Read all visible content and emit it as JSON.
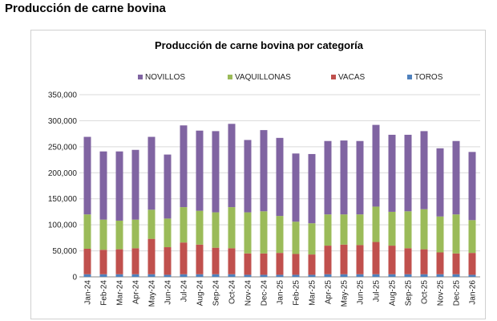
{
  "page": {
    "title": "Producción de carne bovina"
  },
  "colors": {
    "novillos": "#8064A2",
    "vaquillonas": "#9BBB59",
    "vacas": "#C0504D",
    "toros": "#4F81BD",
    "grid": "#d9d9d9",
    "axis": "#888888"
  },
  "chart_data": {
    "type": "bar",
    "stacked": true,
    "title": "Producción de carne bovina por categoría",
    "xlabel": "",
    "ylabel": "",
    "ylim": [
      0,
      350000
    ],
    "yticks": [
      0,
      50000,
      100000,
      150000,
      200000,
      250000,
      300000,
      350000
    ],
    "ytick_labels": [
      "0",
      "50,000",
      "100,000",
      "150,000",
      "200,000",
      "250,000",
      "300,000",
      "350,000"
    ],
    "legend_position": "top",
    "categories": [
      "Jan-24",
      "Feb-24",
      "Mar-24",
      "Apr-24",
      "May-24",
      "Jun-24",
      "Jul-24",
      "Aug-24",
      "Sep-24",
      "Oct-24",
      "Nov-24",
      "Dec-24",
      "Jan-25",
      "Feb-25",
      "Mar-25",
      "Apr-25",
      "May-25",
      "Jun-25",
      "Jul-25",
      "Aug-25",
      "Sep-25",
      "Oct-25",
      "Nov-25",
      "Dec-25",
      "Jan-26"
    ],
    "series": [
      {
        "name": "TOROS",
        "key": "toros",
        "values": [
          5000,
          5000,
          5000,
          5000,
          5000,
          4000,
          5000,
          5000,
          5000,
          5000,
          4000,
          4000,
          4000,
          4000,
          4000,
          5000,
          5000,
          5000,
          5000,
          5000,
          5000,
          5000,
          5000,
          5000,
          4000
        ]
      },
      {
        "name": "VACAS",
        "key": "vacas",
        "values": [
          49000,
          47000,
          48000,
          50000,
          68000,
          53000,
          61000,
          57000,
          51000,
          50000,
          41000,
          41000,
          42000,
          40000,
          39000,
          55000,
          57000,
          56000,
          62000,
          55000,
          50000,
          48000,
          42000,
          40000,
          42000
        ]
      },
      {
        "name": "VAQUILLONAS",
        "key": "vaquillonas",
        "values": [
          66000,
          58000,
          55000,
          55000,
          56000,
          55000,
          68000,
          65000,
          68000,
          79000,
          79000,
          81000,
          71000,
          62000,
          60000,
          60000,
          58000,
          59000,
          68000,
          65000,
          71000,
          77000,
          69000,
          75000,
          63000
        ]
      },
      {
        "name": "NOVILLOS",
        "key": "novillos",
        "values": [
          149000,
          131000,
          133000,
          134000,
          140000,
          123000,
          157000,
          154000,
          156000,
          160000,
          139000,
          156000,
          150000,
          131000,
          133000,
          141000,
          142000,
          141000,
          157000,
          148000,
          147000,
          150000,
          131000,
          141000,
          131000
        ]
      }
    ],
    "legend_order": [
      "NOVILLOS",
      "VAQUILLONAS",
      "VACAS",
      "TOROS"
    ]
  }
}
